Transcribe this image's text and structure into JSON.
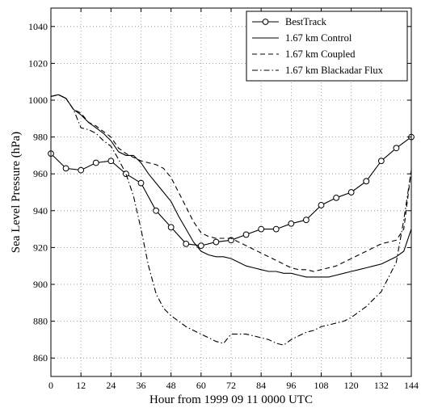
{
  "chart_data": {
    "type": "line",
    "xlabel": "Hour from 1999 09 11 0000 UTC",
    "ylabel": "Sea Level Pressure (hPa)",
    "xlim": [
      0,
      144
    ],
    "ylim": [
      850,
      1050
    ],
    "x_ticks": [
      0,
      12,
      24,
      36,
      48,
      60,
      72,
      84,
      96,
      108,
      120,
      132,
      144
    ],
    "y_ticks": [
      860,
      880,
      900,
      920,
      940,
      960,
      980,
      1000,
      1020,
      1040
    ],
    "grid": true,
    "legend_position": "top-right",
    "series": [
      {
        "name": "BestTrack",
        "style": "solid-circle",
        "color": "#000000",
        "x": [
          0,
          6,
          12,
          18,
          24,
          30,
          36,
          42,
          48,
          54,
          60,
          66,
          72,
          78,
          84,
          90,
          96,
          102,
          108,
          114,
          120,
          126,
          132,
          138,
          144
        ],
        "y": [
          971,
          963,
          962,
          966,
          967,
          960,
          955,
          940,
          931,
          922,
          921,
          923,
          924,
          927,
          930,
          930,
          933,
          935,
          943,
          947,
          950,
          956,
          967,
          974,
          980
        ]
      },
      {
        "name": "1.67 km Control",
        "style": "solid",
        "color": "#000000",
        "x": [
          0,
          3,
          6,
          9,
          12,
          15,
          18,
          21,
          24,
          27,
          30,
          33,
          36,
          39,
          42,
          45,
          48,
          51,
          54,
          57,
          60,
          63,
          66,
          69,
          72,
          75,
          78,
          81,
          84,
          87,
          90,
          93,
          96,
          99,
          102,
          105,
          108,
          111,
          114,
          117,
          120,
          123,
          126,
          129,
          132,
          135,
          138,
          141,
          144
        ],
        "y": [
          1002,
          1003,
          1001,
          995,
          992,
          988,
          985,
          982,
          978,
          972,
          970,
          970,
          966,
          960,
          955,
          950,
          945,
          937,
          930,
          923,
          918,
          916,
          915,
          915,
          914,
          912,
          910,
          909,
          908,
          907,
          907,
          906,
          906,
          905,
          904,
          904,
          904,
          904,
          905,
          906,
          907,
          908,
          909,
          910,
          911,
          913,
          915,
          918,
          930
        ]
      },
      {
        "name": "1.67 km Coupled",
        "style": "dashed",
        "color": "#000000",
        "x": [
          0,
          3,
          6,
          9,
          12,
          15,
          18,
          21,
          24,
          27,
          30,
          33,
          36,
          39,
          42,
          45,
          48,
          51,
          54,
          57,
          60,
          63,
          66,
          69,
          72,
          75,
          78,
          81,
          84,
          87,
          90,
          93,
          96,
          99,
          102,
          105,
          108,
          111,
          114,
          117,
          120,
          123,
          126,
          129,
          132,
          135,
          138,
          141,
          144
        ],
        "y": [
          1002,
          1003,
          1001,
          995,
          993,
          988,
          986,
          983,
          980,
          974,
          971,
          969,
          967,
          966,
          965,
          963,
          958,
          950,
          942,
          934,
          928,
          926,
          925,
          925,
          925,
          923,
          921,
          919,
          917,
          915,
          913,
          911,
          909,
          908,
          908,
          907,
          908,
          909,
          910,
          912,
          914,
          916,
          918,
          920,
          922,
          923,
          924,
          930,
          962
        ]
      },
      {
        "name": "1.67 km Blackadar Flux",
        "style": "dashdot",
        "color": "#000000",
        "x": [
          0,
          3,
          6,
          9,
          12,
          15,
          18,
          21,
          24,
          27,
          30,
          33,
          36,
          39,
          42,
          45,
          48,
          51,
          54,
          57,
          60,
          63,
          66,
          69,
          72,
          75,
          78,
          81,
          84,
          87,
          90,
          93,
          96,
          99,
          102,
          105,
          108,
          111,
          114,
          117,
          120,
          123,
          126,
          129,
          132,
          135,
          138,
          141,
          144
        ],
        "y": [
          1002,
          1003,
          1001,
          995,
          985,
          984,
          982,
          978,
          975,
          968,
          960,
          948,
          930,
          910,
          895,
          887,
          883,
          880,
          877,
          875,
          873,
          871,
          869,
          868,
          873,
          873,
          873,
          872,
          871,
          870,
          868,
          867,
          870,
          872,
          874,
          875,
          877,
          878,
          879,
          880,
          882,
          885,
          888,
          892,
          896,
          904,
          912,
          935,
          962
        ]
      }
    ]
  }
}
